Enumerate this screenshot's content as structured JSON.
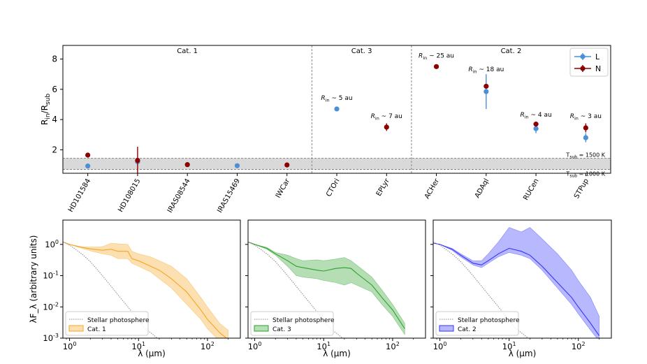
{
  "chart_data": [
    {
      "type": "scatter",
      "ylabel": "R_in/R_sub",
      "ylim": [
        0.45,
        8.9
      ],
      "yticks": [
        2,
        4,
        6,
        8
      ],
      "categories": [
        "HD101584",
        "HD108015",
        "IRAS08544",
        "IRAS15469",
        "IWCar",
        "CTOri",
        "EPLyr",
        "ACHer",
        "ADAql",
        "RUCen",
        "STPup"
      ],
      "regions": [
        {
          "label": "Cat. 1",
          "from": 0,
          "to": 4
        },
        {
          "label": "Cat. 3",
          "from": 5,
          "to": 6
        },
        {
          "label": "Cat. 2",
          "from": 7,
          "to": 10
        }
      ],
      "band": {
        "low": 0.7,
        "high": 1.45,
        "low_label": "T_sub = 1000 K",
        "high_label": "T_sub = 1500 K"
      },
      "legend": {
        "position": "top-right"
      },
      "series": [
        {
          "name": "L",
          "color": "#4a90d9",
          "points": [
            {
              "x": "HD101584",
              "y": 0.93,
              "err": 0
            },
            {
              "x": "HD108015",
              "y": 1.22,
              "err": 0
            },
            {
              "x": "IRAS15469",
              "y": 0.95,
              "err": 0
            },
            {
              "x": "CTOri",
              "y": 4.7,
              "err": 0
            },
            {
              "x": "ADAql",
              "y": 5.85,
              "err": 1.15
            },
            {
              "x": "RUCen",
              "y": 3.4,
              "err": 0.3
            },
            {
              "x": "STPup",
              "y": 2.8,
              "err": 0.3
            }
          ]
        },
        {
          "name": "N",
          "color": "#8b0000",
          "points": [
            {
              "x": "HD101584",
              "y": 1.65,
              "err": 0
            },
            {
              "x": "HD108015",
              "y": 1.3,
              "err": 0.9
            },
            {
              "x": "IRAS08544",
              "y": 1.02,
              "err": 0
            },
            {
              "x": "IWCar",
              "y": 1.0,
              "err": 0
            },
            {
              "x": "EPLyr",
              "y": 3.5,
              "err": 0.25
            },
            {
              "x": "ACHer",
              "y": 7.5,
              "err": 0
            },
            {
              "x": "ADAql",
              "y": 6.2,
              "err": 0
            },
            {
              "x": "RUCen",
              "y": 3.7,
              "err": 0
            },
            {
              "x": "STPup",
              "y": 3.45,
              "err": 0.3
            }
          ]
        }
      ],
      "annotations": [
        {
          "star": "CTOri",
          "text": "R_in ~ 5 au",
          "y": 5.3
        },
        {
          "star": "EPLyr",
          "text": "R_in ~ 7 au",
          "y": 4.1
        },
        {
          "star": "ACHer",
          "text": "R_in ~ 25 au",
          "y": 8.1
        },
        {
          "star": "ADAql",
          "text": "R_in ~ 18 au",
          "y": 7.2
        },
        {
          "star": "RUCen",
          "text": "R_in ~ 4 au",
          "y": 4.2
        },
        {
          "star": "STPup",
          "text": "R_in ~ 3 au",
          "y": 4.1
        }
      ]
    },
    {
      "type": "area",
      "xlabel": "λ (μm)",
      "ylabel": "λF_λ (arbitrary units)",
      "xscale": "log",
      "yscale": "log",
      "xlim": [
        0.8,
        300
      ],
      "ylim": [
        0.001,
        6
      ],
      "xticks": [
        1,
        10,
        100
      ],
      "xtick_labels": [
        "10^0",
        "10^1",
        "10^2"
      ],
      "yticks": [
        0.001,
        0.01,
        0.1,
        1
      ],
      "ytick_labels": [
        "10^-3",
        "10^-2",
        "10^-1",
        "10^0"
      ],
      "legend": {
        "position": "bottom-left",
        "photosphere_label": "Stellar photosphere"
      },
      "photosphere": {
        "x": [
          0.8,
          1,
          1.5,
          2,
          3,
          5,
          8,
          12,
          20
        ],
        "y": [
          1.2,
          0.95,
          0.5,
          0.28,
          0.1,
          0.025,
          0.007,
          0.0022,
          0.0009
        ]
      },
      "panels": [
        {
          "name": "Cat. 1",
          "color": "#f5a623",
          "x": [
            0.8,
            1,
            1.5,
            2,
            3,
            4,
            5,
            7,
            8,
            10,
            15,
            20,
            30,
            50,
            80,
            100,
            150,
            200
          ],
          "y": [
            1.2,
            1.0,
            0.8,
            0.72,
            0.65,
            0.7,
            0.6,
            0.6,
            0.35,
            0.3,
            0.2,
            0.15,
            0.08,
            0.03,
            0.008,
            0.004,
            0.0015,
            0.0009
          ],
          "lo": [
            1.2,
            1.0,
            0.75,
            0.62,
            0.5,
            0.45,
            0.35,
            0.35,
            0.25,
            0.2,
            0.13,
            0.08,
            0.04,
            0.012,
            0.004,
            0.002,
            0.0008,
            0.0004
          ],
          "hi": [
            1.2,
            1.0,
            0.85,
            0.82,
            0.85,
            1.1,
            1.05,
            1.0,
            0.6,
            0.5,
            0.4,
            0.3,
            0.2,
            0.08,
            0.02,
            0.01,
            0.003,
            0.0018
          ]
        },
        {
          "name": "Cat. 3",
          "color": "#2ca02c",
          "x": [
            0.8,
            1,
            1.5,
            2,
            3,
            4,
            5,
            8,
            10,
            15,
            20,
            25,
            30,
            50,
            70,
            100,
            150
          ],
          "y": [
            1.2,
            1.0,
            0.75,
            0.5,
            0.3,
            0.2,
            0.18,
            0.15,
            0.14,
            0.17,
            0.18,
            0.17,
            0.12,
            0.05,
            0.02,
            0.008,
            0.002
          ],
          "lo": [
            1.2,
            1.0,
            0.7,
            0.45,
            0.2,
            0.1,
            0.09,
            0.08,
            0.07,
            0.06,
            0.05,
            0.06,
            0.05,
            0.03,
            0.012,
            0.005,
            0.0013
          ],
          "hi": [
            1.2,
            1.0,
            0.8,
            0.55,
            0.45,
            0.35,
            0.3,
            0.32,
            0.3,
            0.34,
            0.38,
            0.3,
            0.22,
            0.09,
            0.035,
            0.012,
            0.003
          ]
        },
        {
          "name": "Cat. 2",
          "color": "#3333ff",
          "x": [
            0.8,
            1,
            1.5,
            2,
            3,
            4,
            5,
            7,
            10,
            15,
            20,
            30,
            50,
            80,
            100,
            150,
            200
          ],
          "y": [
            1.1,
            1.0,
            0.7,
            0.45,
            0.25,
            0.22,
            0.3,
            0.5,
            0.75,
            0.6,
            0.45,
            0.2,
            0.06,
            0.02,
            0.01,
            0.003,
            0.0012
          ],
          "lo": [
            1.1,
            1.0,
            0.65,
            0.4,
            0.22,
            0.18,
            0.25,
            0.4,
            0.55,
            0.45,
            0.35,
            0.15,
            0.04,
            0.012,
            0.006,
            0.0018,
            0.0008
          ],
          "hi": [
            1.1,
            1.0,
            0.75,
            0.5,
            0.3,
            0.3,
            0.5,
            1.2,
            3.5,
            2.5,
            3.5,
            1.5,
            0.5,
            0.15,
            0.07,
            0.02,
            0.005
          ]
        }
      ]
    }
  ]
}
